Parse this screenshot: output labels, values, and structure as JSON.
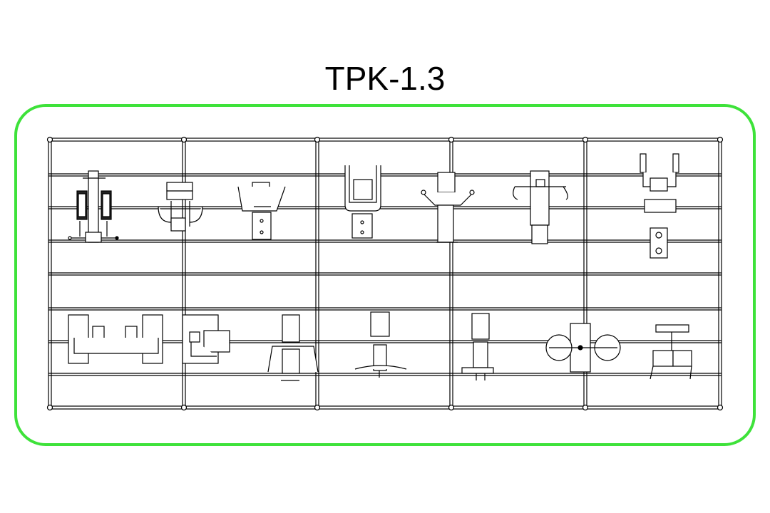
{
  "drawing": {
    "title": "TPK-1.3",
    "frame_color": "#3ee23a",
    "line_color": "#000000"
  }
}
